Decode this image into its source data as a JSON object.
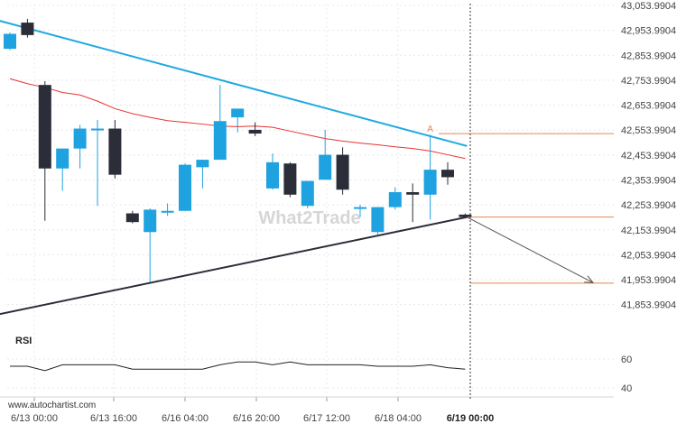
{
  "chart_data": {
    "type": "candlestick",
    "watermark": "What2Trade",
    "source": "www.autochartist.com",
    "current_marker": "6/19 00:00",
    "pattern_marker": "A",
    "x_ticks": [
      "6/13 00:00",
      "6/13 16:00",
      "6/16 04:00",
      "6/16 20:00",
      "6/17 12:00",
      "6/18 04:00"
    ],
    "y_ticks": [
      "43,053.9904",
      "42,953.9904",
      "42,853.9904",
      "42,753.9904",
      "42,653.9904",
      "42,553.9904",
      "42,453.9904",
      "42,353.9904",
      "42,253.9904",
      "42,153.9904",
      "42,053.9904",
      "41,953.9904",
      "41,853.9904"
    ],
    "y_range": [
      41803.99,
      43053.99
    ],
    "candles": [
      {
        "o": 42880,
        "h": 42945,
        "l": 42875,
        "c": 42940
      },
      {
        "o": 42985,
        "h": 43000,
        "l": 42925,
        "c": 42935
      },
      {
        "o": 42735,
        "h": 42750,
        "l": 42190,
        "c": 42400
      },
      {
        "o": 42400,
        "h": 42475,
        "l": 42310,
        "c": 42480
      },
      {
        "o": 42480,
        "h": 42575,
        "l": 42400,
        "c": 42560
      },
      {
        "o": 42560,
        "h": 42595,
        "l": 42250,
        "c": 42560
      },
      {
        "o": 42560,
        "h": 42595,
        "l": 42360,
        "c": 42375
      },
      {
        "o": 42220,
        "h": 42230,
        "l": 42180,
        "c": 42185
      },
      {
        "o": 42145,
        "h": 42240,
        "l": 41945,
        "c": 42235
      },
      {
        "o": 42230,
        "h": 42260,
        "l": 42210,
        "c": 42230
      },
      {
        "o": 42230,
        "h": 42420,
        "l": 42230,
        "c": 42415
      },
      {
        "o": 42405,
        "h": 42435,
        "l": 42320,
        "c": 42435
      },
      {
        "o": 42435,
        "h": 42735,
        "l": 42435,
        "c": 42590
      },
      {
        "o": 42605,
        "h": 42640,
        "l": 42545,
        "c": 42640
      },
      {
        "o": 42555,
        "h": 42585,
        "l": 42530,
        "c": 42540
      },
      {
        "o": 42320,
        "h": 42460,
        "l": 42315,
        "c": 42425
      },
      {
        "o": 42420,
        "h": 42425,
        "l": 42285,
        "c": 42295
      },
      {
        "o": 42250,
        "h": 42350,
        "l": 42240,
        "c": 42350
      },
      {
        "o": 42355,
        "h": 42555,
        "l": 42355,
        "c": 42455
      },
      {
        "o": 42455,
        "h": 42485,
        "l": 42295,
        "c": 42315
      },
      {
        "o": 42245,
        "h": 42255,
        "l": 42205,
        "c": 42245
      },
      {
        "o": 42145,
        "h": 42245,
        "l": 42135,
        "c": 42245
      },
      {
        "o": 42245,
        "h": 42325,
        "l": 42235,
        "c": 42305
      },
      {
        "o": 42305,
        "h": 42340,
        "l": 42185,
        "c": 42295
      },
      {
        "o": 42295,
        "h": 42535,
        "l": 42195,
        "c": 42395
      },
      {
        "o": 42395,
        "h": 42425,
        "l": 42335,
        "c": 42365
      },
      {
        "o": 42215,
        "h": 42220,
        "l": 42200,
        "c": 42205
      }
    ],
    "moving_average": [
      42760,
      42740,
      42725,
      42705,
      42695,
      42670,
      42640,
      42620,
      42605,
      42592,
      42585,
      42578,
      42570,
      42568,
      42570,
      42565,
      42550,
      42535,
      42520,
      42510,
      42502,
      42495,
      42487,
      42480,
      42470,
      42455,
      42440
    ],
    "trendline_upper": [
      {
        "i": -1,
        "v": 43000
      },
      {
        "i": 26.1,
        "v": 42490
      }
    ],
    "trendline_lower": [
      {
        "i": -1,
        "v": 41810
      },
      {
        "i": 26.1,
        "v": 42205
      }
    ],
    "horizontal_levels": [
      42540,
      42205,
      41940
    ],
    "forecast_arrow": {
      "from_i": 26.1,
      "from_v": 42205,
      "to_i": 33.3,
      "to_v": 41942
    },
    "rsi": {
      "label": "RSI",
      "ticks": [
        "60",
        "40"
      ],
      "range": [
        30,
        70
      ],
      "values": [
        55,
        55,
        52,
        56,
        56,
        56,
        56,
        53,
        53,
        53,
        53,
        53,
        56,
        58,
        58,
        56,
        58,
        56,
        56,
        56,
        56,
        55,
        55,
        55,
        56,
        54,
        53
      ]
    },
    "colors": {
      "bull": "#1fa2e0",
      "bear": "#2b2d38",
      "upper_trendline": "#20a9df",
      "lower_trendline": "#2b2d38",
      "moving_average": "#e8332f",
      "levels": "#e38650",
      "rsi": "#222222",
      "watermark": "#c9c9c9"
    }
  }
}
